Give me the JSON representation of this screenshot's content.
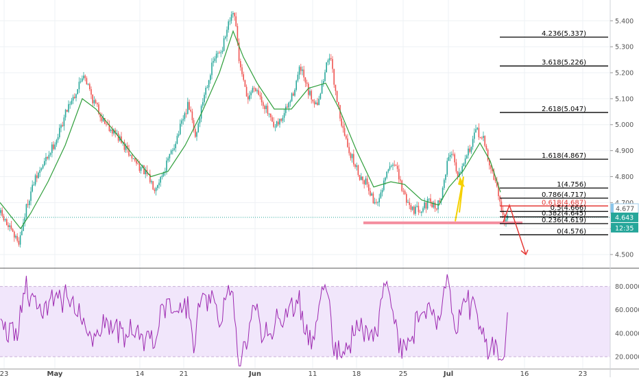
{
  "chart_data": [
    {
      "type": "candlestick",
      "panel": "price",
      "ylim": [
        4.45,
        5.48
      ],
      "y_ticks": [
        "5.400",
        "5.300",
        "5.200",
        "5.100",
        "5.000",
        "4.900",
        "4.800",
        "4.700",
        "4.600",
        "4.500"
      ],
      "x_ticks": [
        "23",
        "May",
        "14",
        "21",
        "Jun",
        "11",
        "18",
        "25",
        "Jul",
        "16",
        "23"
      ],
      "price_path": [
        [
          0,
          4.66
        ],
        [
          20,
          4.57
        ],
        [
          28,
          4.55
        ],
        [
          40,
          4.7
        ],
        [
          50,
          4.78
        ],
        [
          70,
          4.88
        ],
        [
          85,
          4.96
        ],
        [
          100,
          5.08
        ],
        [
          110,
          5.12
        ],
        [
          122,
          5.2
        ],
        [
          135,
          5.1
        ],
        [
          150,
          5.02
        ],
        [
          170,
          4.96
        ],
        [
          190,
          4.88
        ],
        [
          210,
          4.82
        ],
        [
          225,
          4.76
        ],
        [
          235,
          4.8
        ],
        [
          248,
          4.88
        ],
        [
          262,
          4.98
        ],
        [
          275,
          5.08
        ],
        [
          285,
          4.95
        ],
        [
          298,
          5.12
        ],
        [
          312,
          5.25
        ],
        [
          325,
          5.3
        ],
        [
          335,
          5.4
        ],
        [
          342,
          5.42
        ],
        [
          350,
          5.22
        ],
        [
          360,
          5.1
        ],
        [
          372,
          5.15
        ],
        [
          385,
          5.08
        ],
        [
          400,
          4.98
        ],
        [
          410,
          5.02
        ],
        [
          425,
          5.1
        ],
        [
          438,
          5.22
        ],
        [
          450,
          5.12
        ],
        [
          462,
          5.08
        ],
        [
          470,
          5.15
        ],
        [
          480,
          5.28
        ],
        [
          490,
          5.12
        ],
        [
          500,
          4.98
        ],
        [
          512,
          4.88
        ],
        [
          525,
          4.8
        ],
        [
          535,
          4.78
        ],
        [
          545,
          4.7
        ],
        [
          555,
          4.72
        ],
        [
          565,
          4.82
        ],
        [
          575,
          4.86
        ],
        [
          585,
          4.76
        ],
        [
          595,
          4.7
        ],
        [
          605,
          4.67
        ],
        [
          615,
          4.68
        ],
        [
          625,
          4.7
        ],
        [
          635,
          4.68
        ],
        [
          645,
          4.73
        ],
        [
          652,
          4.86
        ],
        [
          660,
          4.9
        ],
        [
          668,
          4.8
        ],
        [
          678,
          4.88
        ],
        [
          688,
          4.92
        ],
        [
          695,
          4.98
        ],
        [
          705,
          4.94
        ],
        [
          715,
          4.84
        ],
        [
          722,
          4.78
        ],
        [
          730,
          4.7
        ],
        [
          736,
          4.62
        ],
        [
          742,
          4.66
        ]
      ],
      "ma_path": [
        [
          0,
          4.7
        ],
        [
          30,
          4.6
        ],
        [
          45,
          4.66
        ],
        [
          70,
          4.78
        ],
        [
          95,
          4.92
        ],
        [
          120,
          5.1
        ],
        [
          140,
          5.06
        ],
        [
          165,
          4.98
        ],
        [
          195,
          4.88
        ],
        [
          220,
          4.8
        ],
        [
          245,
          4.82
        ],
        [
          270,
          4.92
        ],
        [
          295,
          5.05
        ],
        [
          320,
          5.2
        ],
        [
          340,
          5.36
        ],
        [
          355,
          5.26
        ],
        [
          375,
          5.16
        ],
        [
          400,
          5.06
        ],
        [
          425,
          5.06
        ],
        [
          450,
          5.14
        ],
        [
          475,
          5.16
        ],
        [
          495,
          5.06
        ],
        [
          520,
          4.9
        ],
        [
          545,
          4.76
        ],
        [
          570,
          4.78
        ],
        [
          590,
          4.77
        ],
        [
          615,
          4.71
        ],
        [
          640,
          4.69
        ],
        [
          655,
          4.76
        ],
        [
          675,
          4.82
        ],
        [
          700,
          4.93
        ],
        [
          715,
          4.86
        ],
        [
          730,
          4.74
        ]
      ],
      "last_price": "4.643",
      "last_price_color": "#26a69a",
      "marker_price": "4.677",
      "countdown": "12:35",
      "fib_levels": [
        {
          "label": "4.236(5.337)",
          "value": 5.337
        },
        {
          "label": "3.618(5.226)",
          "value": 5.226
        },
        {
          "label": "2.618(5.047)",
          "value": 5.047
        },
        {
          "label": "1.618(4.867)",
          "value": 4.867
        },
        {
          "label": "1(4.756)",
          "value": 4.756
        },
        {
          "label": "0.786(4.717)",
          "value": 4.717
        },
        {
          "label": "0.618(4.687)",
          "value": 4.687,
          "color": "#e53935"
        },
        {
          "label": "0.5(4.666)",
          "value": 4.666
        },
        {
          "label": "0.382(4.645)",
          "value": 4.645
        },
        {
          "label": "0.236(4.619)",
          "value": 4.619
        },
        {
          "label": "0(4.576)",
          "value": 4.576
        }
      ],
      "support_level": 4.622,
      "colors": {
        "candle_up": "#26a69a",
        "candle_down": "#ef5350",
        "ma": "#2e9e3a",
        "support": "#f48fa0",
        "fib_line": "#000000",
        "arrow": "#e53935",
        "projection": "#f5d000"
      }
    },
    {
      "type": "line",
      "panel": "rsi",
      "ylim": [
        10,
        95
      ],
      "y_ticks": [
        "80.0000",
        "60.0000",
        "40.0000",
        "20.0000"
      ],
      "band": [
        20,
        80
      ],
      "series_color": "#9c27b0",
      "band_color": "#f1e6fb"
    }
  ]
}
